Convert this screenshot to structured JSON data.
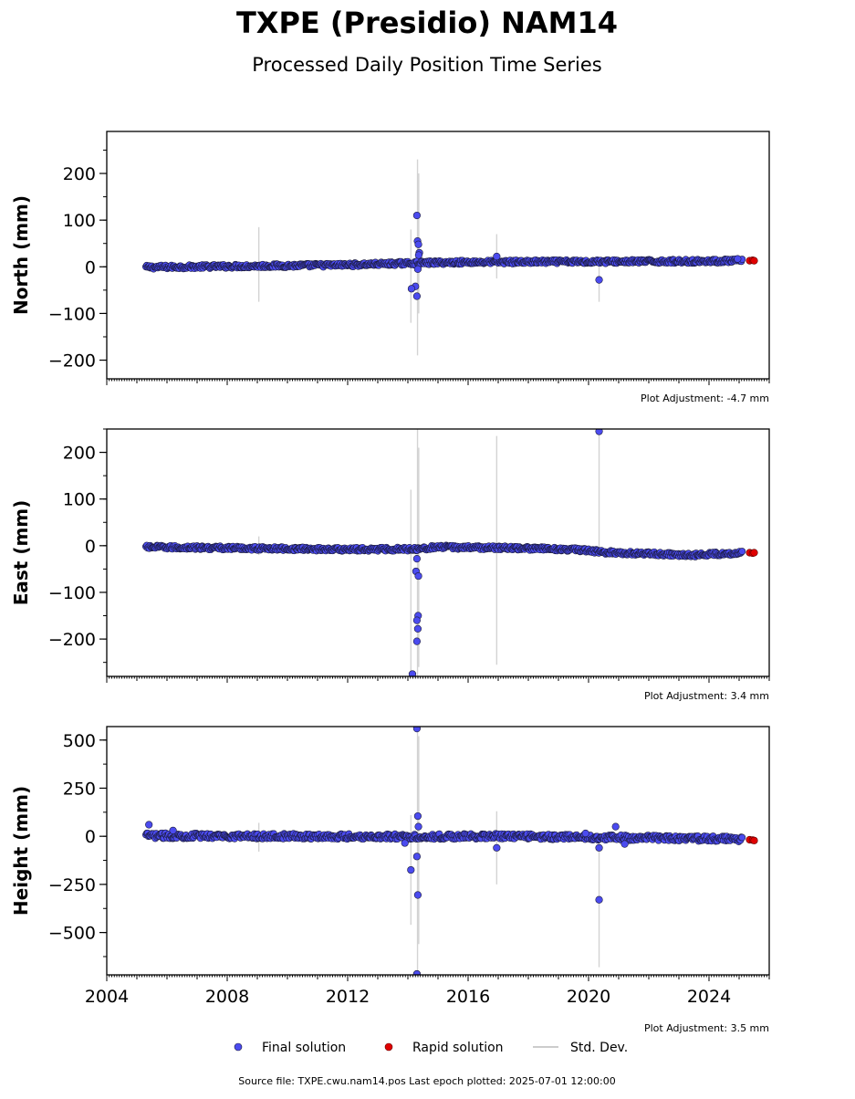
{
  "title": "TXPE (Presidio) NAM14",
  "subtitle": "Processed Daily Position Time Series",
  "footer": "Source file: TXPE.cwu.nam14.pos  Last epoch plotted: 2025-07-01 12:00:00",
  "legend": [
    {
      "label": "Final solution",
      "marker": "final"
    },
    {
      "label": "Rapid solution",
      "marker": "rapid"
    },
    {
      "label": "Std. Dev.",
      "marker": "stddev"
    }
  ],
  "colors": {
    "final": "#4b4bef",
    "final_edge": "#1a1a3a",
    "rapid": "#e00000",
    "stddev": "#b0b0b0",
    "axis": "#000000"
  },
  "chart_data": [
    {
      "type": "scatter",
      "component": "north",
      "ylabel": "North (mm)",
      "adjustment": "Plot Adjustment: -4.7 mm",
      "xlim": [
        2004,
        2026
      ],
      "ylim": [
        -240,
        290
      ],
      "yticks": [
        -200,
        -100,
        0,
        100,
        200
      ],
      "yticklabels": [
        "−200",
        "−100",
        "0",
        "100",
        "200"
      ],
      "minor_ystep": 50,
      "show_xticklabels": false,
      "trend": [
        [
          2005.3,
          -1
        ],
        [
          2008,
          1
        ],
        [
          2012,
          4
        ],
        [
          2014.2,
          8
        ],
        [
          2016,
          10
        ],
        [
          2020,
          11
        ],
        [
          2024,
          12
        ],
        [
          2025.1,
          13
        ]
      ],
      "band": 4,
      "rapid": {
        "x": [
          2025.35,
          2025.45,
          2025.5
        ],
        "y": [
          13,
          14,
          13
        ]
      },
      "outliers": [
        [
          2014.3,
          110
        ],
        [
          2014.32,
          55
        ],
        [
          2014.35,
          48
        ],
        [
          2014.38,
          30
        ],
        [
          2014.36,
          25
        ],
        [
          2014.25,
          -42
        ],
        [
          2014.12,
          -47
        ],
        [
          2014.3,
          -63
        ],
        [
          2014.33,
          -5
        ],
        [
          2016.95,
          22
        ],
        [
          2020.35,
          -28
        ],
        [
          2024.95,
          17
        ]
      ],
      "stddev": [
        [
          2009.05,
          -75,
          85
        ],
        [
          2014.1,
          -120,
          80
        ],
        [
          2014.32,
          -190,
          230
        ],
        [
          2014.36,
          -100,
          200
        ],
        [
          2016.95,
          -25,
          70
        ],
        [
          2020.35,
          -75,
          15
        ]
      ]
    },
    {
      "type": "scatter",
      "component": "east",
      "ylabel": "East (mm)",
      "adjustment": "Plot Adjustment: 3.4 mm",
      "xlim": [
        2004,
        2026
      ],
      "ylim": [
        -280,
        250
      ],
      "yticks": [
        -200,
        -100,
        0,
        100,
        200
      ],
      "yticklabels": [
        "−200",
        "−100",
        "0",
        "100",
        "200"
      ],
      "minor_ystep": 50,
      "show_xticklabels": false,
      "trend": [
        [
          2005.3,
          -3
        ],
        [
          2008,
          -5
        ],
        [
          2012,
          -8
        ],
        [
          2014.2,
          -7
        ],
        [
          2015,
          -3
        ],
        [
          2017.5,
          -5
        ],
        [
          2019.5,
          -8
        ],
        [
          2020.5,
          -14
        ],
        [
          2022.5,
          -18
        ],
        [
          2023.5,
          -20
        ],
        [
          2025.1,
          -15
        ]
      ],
      "band": 4,
      "rapid": {
        "x": [
          2025.35,
          2025.45,
          2025.5
        ],
        "y": [
          -15,
          -16,
          -15
        ]
      },
      "outliers": [
        [
          2014.3,
          -28
        ],
        [
          2014.27,
          -55
        ],
        [
          2014.35,
          -65
        ],
        [
          2014.34,
          -150
        ],
        [
          2014.3,
          -160
        ],
        [
          2014.33,
          -178
        ],
        [
          2014.3,
          -205
        ],
        [
          2014.15,
          -275
        ],
        [
          2020.35,
          245
        ]
      ],
      "stddev": [
        [
          2009.05,
          -20,
          20
        ],
        [
          2014.1,
          -280,
          120
        ],
        [
          2014.32,
          -280,
          250
        ],
        [
          2014.36,
          -260,
          210
        ],
        [
          2016.95,
          -255,
          235
        ],
        [
          2020.35,
          -20,
          245
        ]
      ]
    },
    {
      "type": "scatter",
      "component": "height",
      "ylabel": "Height (mm)",
      "adjustment": "Plot Adjustment: 3.5 mm",
      "xlim": [
        2004,
        2026
      ],
      "ylim": [
        -720,
        570
      ],
      "yticks": [
        -500,
        -250,
        0,
        250,
        500
      ],
      "yticklabels": [
        "−500",
        "−250",
        "0",
        "250",
        "500"
      ],
      "minor_ystep": 125,
      "show_xticklabels": true,
      "xticks": [
        2004,
        2008,
        2012,
        2016,
        2020,
        2024
      ],
      "xticklabels": [
        "2004",
        "2008",
        "2012",
        "2016",
        "2020",
        "2024"
      ],
      "trend": [
        [
          2005.3,
          3
        ],
        [
          2010,
          0
        ],
        [
          2014.2,
          -2
        ],
        [
          2017,
          0
        ],
        [
          2020,
          -5
        ],
        [
          2025.1,
          -15
        ]
      ],
      "band": 14,
      "rapid": {
        "x": [
          2025.35,
          2025.45,
          2025.5
        ],
        "y": [
          -18,
          -20,
          -22
        ]
      },
      "outliers": [
        [
          2005.4,
          60
        ],
        [
          2006.2,
          30
        ],
        [
          2014.3,
          560
        ],
        [
          2014.33,
          105
        ],
        [
          2014.35,
          50
        ],
        [
          2014.1,
          -175
        ],
        [
          2014.3,
          -105
        ],
        [
          2014.33,
          -305
        ],
        [
          2014.3,
          -715
        ],
        [
          2013.9,
          -35
        ],
        [
          2016.95,
          -60
        ],
        [
          2020.35,
          -60
        ],
        [
          2020.35,
          -330
        ],
        [
          2020.9,
          50
        ],
        [
          2021.2,
          -40
        ],
        [
          2019.9,
          15
        ]
      ],
      "stddev": [
        [
          2009.05,
          -80,
          70
        ],
        [
          2014.1,
          -460,
          110
        ],
        [
          2014.32,
          -720,
          570
        ],
        [
          2014.36,
          -560,
          520
        ],
        [
          2016.95,
          -250,
          130
        ],
        [
          2020.35,
          -680,
          -10
        ]
      ]
    }
  ]
}
